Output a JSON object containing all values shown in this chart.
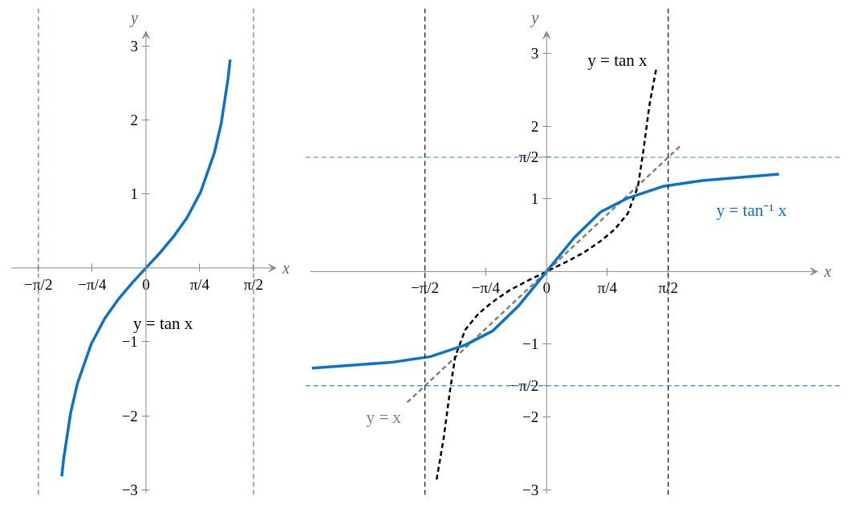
{
  "chart_data": [
    {
      "type": "line",
      "xlabel": "x",
      "ylabel": "y",
      "xlim": [
        -1.97,
        1.9
      ],
      "ylim": [
        -3.05,
        3.2
      ],
      "xticks": [
        {
          "value": -1.5708,
          "label": "−π/2"
        },
        {
          "value": -0.7854,
          "label": "−π/4"
        },
        {
          "value": 0,
          "label": "0"
        },
        {
          "value": 0.7854,
          "label": "π/4"
        },
        {
          "value": 1.5708,
          "label": "π/2"
        }
      ],
      "yticks": [
        -3,
        -2,
        -1,
        1,
        2,
        3
      ],
      "grid": false,
      "legend": false,
      "line_style": "solid",
      "marker": "none",
      "ref_lines": [
        {
          "axis": "x",
          "value": -1.5708,
          "label": null,
          "color": "#3b7fc0",
          "line_style": "dashed"
        },
        {
          "axis": "x",
          "value": 1.5708,
          "label": null,
          "color": "#3b7fc0",
          "line_style": "dashed"
        }
      ],
      "series": [
        {
          "name": "y = tan x",
          "color": "#0b72c7",
          "x": [
            -1.23,
            -1.2,
            -1.1,
            -1.0,
            -0.8,
            -0.6,
            -0.4,
            -0.2,
            0,
            0.2,
            0.4,
            0.6,
            0.8,
            1.0,
            1.1,
            1.2,
            1.23
          ],
          "values": [
            -2.82,
            -2.57,
            -1.96,
            -1.56,
            -1.03,
            -0.68,
            -0.42,
            -0.2,
            0,
            0.2,
            0.42,
            0.68,
            1.03,
            1.56,
            1.96,
            2.57,
            2.82
          ]
        }
      ]
    },
    {
      "type": "line",
      "xlabel": "x",
      "ylabel": "y",
      "xlim": [
        -3.05,
        3.5
      ],
      "ylim": [
        -3.05,
        3.3
      ],
      "xticks": [
        {
          "value": -1.5708,
          "label": "−π/2"
        },
        {
          "value": -0.7854,
          "label": "−π/4"
        },
        {
          "value": 0,
          "label": "0"
        },
        {
          "value": 0.7854,
          "label": "π/4"
        },
        {
          "value": 1.5708,
          "label": "π/2"
        }
      ],
      "yticks": [
        -3,
        -2,
        {
          "value": -1.5708,
          "label": "−π/2"
        },
        -1,
        1,
        {
          "value": 1.5708,
          "label": "π/2"
        },
        2,
        3
      ],
      "grid": false,
      "legend": false,
      "marker": "none",
      "ref_lines": [
        {
          "axis": "x",
          "value": -1.5708,
          "label": null,
          "color": "#000000",
          "line_style": "dashed"
        },
        {
          "axis": "x",
          "value": 1.5708,
          "label": null,
          "color": "#000000",
          "line_style": "dashed"
        },
        {
          "axis": "y",
          "value": -1.5708,
          "label": null,
          "color": "#3b7fc0",
          "line_style": "dashed"
        },
        {
          "axis": "y",
          "value": 1.5708,
          "label": null,
          "color": "#3b7fc0",
          "line_style": "dashed"
        }
      ],
      "series": [
        {
          "name": "y = x",
          "color": "#808080",
          "line_style": "dashed",
          "x": [
            -1.8,
            1.75
          ],
          "values": [
            -1.8,
            1.75
          ]
        },
        {
          "name": "y = tan x",
          "color": "#000000",
          "line_style": "dashed",
          "x": [
            -1.42,
            -1.33,
            -1.25,
            -1.18,
            -1.05,
            -0.88,
            -0.7,
            -0.48,
            -0.25,
            0,
            0.25,
            0.48,
            0.7,
            0.88,
            1.05,
            1.18,
            1.25,
            1.33,
            1.42
          ],
          "values": [
            -2.86,
            -2.3,
            -1.66,
            -1.17,
            -0.8,
            -0.58,
            -0.42,
            -0.26,
            -0.13,
            0,
            0.13,
            0.26,
            0.42,
            0.58,
            0.8,
            1.17,
            1.66,
            2.3,
            2.81
          ]
        },
        {
          "name": "y = tan⁻¹ x",
          "color": "#0b72c7",
          "line_style": "solid",
          "x": [
            -3.03,
            -2.01,
            -1.5,
            -1.05,
            -0.7,
            -0.36,
            0,
            0.36,
            0.7,
            1.05,
            1.5,
            2.01,
            3.0
          ],
          "values": [
            -1.33,
            -1.25,
            -1.17,
            -1.01,
            -0.82,
            -0.47,
            0,
            0.47,
            0.82,
            1.01,
            1.17,
            1.25,
            1.34
          ]
        }
      ]
    }
  ]
}
